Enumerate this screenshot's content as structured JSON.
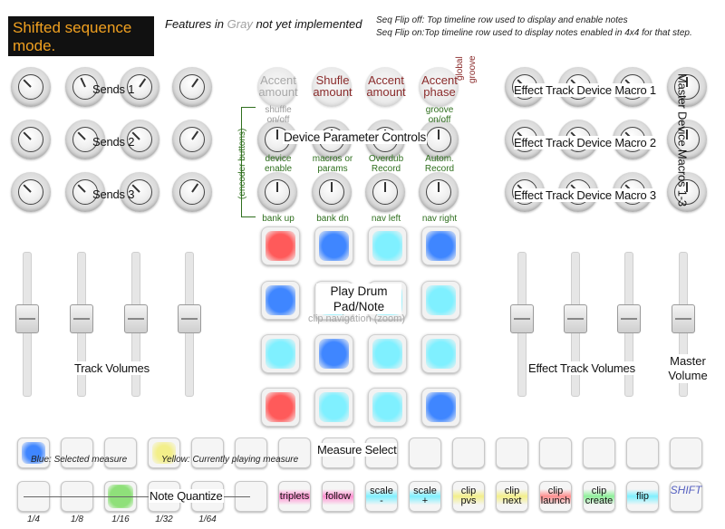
{
  "header": {
    "mode_title_line1": "Shifted sequence",
    "mode_title_line2": "mode.",
    "features_prefix": "Features in ",
    "features_gray": "Gray",
    "features_suffix": " not yet implemented",
    "seq_flip_off": "Seq Flip off: Top timeline row used to display and enable notes",
    "seq_flip_on": "Seq Flip on:Top timeline row used to display notes enabled in 4x4 for that step."
  },
  "sends": [
    "Sends 1",
    "Sends 2",
    "Sends 3"
  ],
  "effect_macros": [
    "Effect Track Device Macro 1",
    "Effect Track Device Macro 2",
    "Effect Track Device Macro 3"
  ],
  "master_macros": "Master Device Macros 1-3",
  "top_knobs": [
    {
      "line1": "Accent",
      "line2": "amount",
      "style": "gray"
    },
    {
      "line1": "Shufle",
      "line2": "amount",
      "style": "red"
    },
    {
      "line1": "Accent",
      "line2": "amount",
      "style": "red"
    },
    {
      "line1": "Accent",
      "line2": "phase",
      "style": "red"
    }
  ],
  "global_label": "global",
  "groove_label": "groove",
  "device_params": {
    "title": "Device Parameter Controls",
    "encoder_note": "(encoder buttons)",
    "row1": [
      {
        "line1": "shuffle",
        "line2": "on/off",
        "style": "gray"
      },
      {
        "line1": "",
        "line2": "",
        "style": "none"
      },
      {
        "line1": "",
        "line2": "",
        "style": "none"
      },
      {
        "line1": "groove",
        "line2": "on/off",
        "style": "green"
      }
    ],
    "row2": [
      {
        "line1": "device",
        "line2": "enable"
      },
      {
        "line1": "macros or",
        "line2": "params"
      },
      {
        "line1": "Overdub",
        "line2": "Record"
      },
      {
        "line1": "Autom.",
        "line2": "Record"
      }
    ],
    "row3": [
      "bank up",
      "bank dn",
      "nav left",
      "nav right"
    ]
  },
  "pads": {
    "label_line1": "Play Drum",
    "label_line2": "Pad/Note",
    "clip_nav": "clip navigation (zoom)",
    "colors": [
      [
        "#ff5a5a",
        "#3f86ff",
        "#7ff0ff",
        "#3f86ff"
      ],
      [
        "#3f86ff",
        "#7ff0ff",
        "#7ff0ff",
        "#7ff0ff"
      ],
      [
        "#7ff0ff",
        "#3f86ff",
        "#7ff0ff",
        "#7ff0ff"
      ],
      [
        "#ff5a5a",
        "#7ff0ff",
        "#7ff0ff",
        "#3f86ff"
      ]
    ]
  },
  "track_volumes": "Track Volumes",
  "effect_track_volumes": "Effect Track Volumes",
  "master_volume_line1": "Master",
  "master_volume_line2": "Volume",
  "measure_select": "Measure Select",
  "blue_note": "Blue: Selected measure",
  "yellow_note": "Yellow: Currently playing measure",
  "note_quantize": "Note Quantize",
  "quantize_values": [
    "1/4",
    "1/8",
    "1/16",
    "1/32",
    "1/64"
  ],
  "function_buttons": [
    {
      "line1": "triplets",
      "line2": "",
      "color": "#ff8fd0"
    },
    {
      "line1": "follow",
      "line2": "",
      "color": "#ff8fd0"
    },
    {
      "line1": "scale",
      "line2": "-",
      "color": "#7ff0ff"
    },
    {
      "line1": "scale",
      "line2": "+",
      "color": "#7ff0ff"
    },
    {
      "line1": "clip",
      "line2": "pvs",
      "color": "#f3ef8a"
    },
    {
      "line1": "clip",
      "line2": "next",
      "color": "#f3ef8a"
    },
    {
      "line1": "clip",
      "line2": "launch",
      "color": "#ff8f8f"
    },
    {
      "line1": "clip",
      "line2": "create",
      "color": "#8ff09a"
    },
    {
      "line1": "flip",
      "line2": "",
      "color": "#7ff0ff"
    }
  ],
  "shift_label": "SHIFT",
  "colors": {
    "title_bg": "#111111",
    "title_text": "#f0a020",
    "green_label": "#2f6f1e",
    "red_label": "#8a2b2b",
    "gray_label": "#a0a0a0",
    "selected_blue": "#3f86ff",
    "playing_yellow": "#f3ef8a",
    "quantize_green": "#8fe07a",
    "shift_blue": "#5560c0"
  }
}
